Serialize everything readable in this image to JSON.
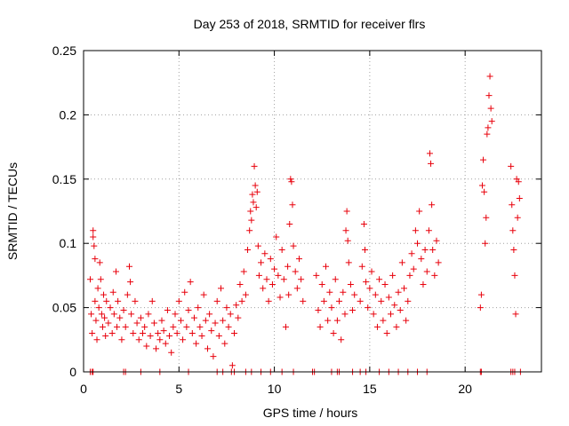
{
  "chart_data": {
    "type": "scatter",
    "title": "Day 253 of 2018, SRMTID for receiver flrs",
    "xlabel": "GPS time / hours",
    "ylabel": "SRMTID / TECUs",
    "xlim": [
      0,
      24
    ],
    "ylim": [
      0,
      0.25
    ],
    "xticks": [
      "0",
      "5",
      "10",
      "15",
      "20"
    ],
    "yticks": [
      "0",
      "0.05",
      "0.1",
      "0.15",
      "0.2",
      "0.25"
    ],
    "grid": true,
    "marker": "plus",
    "color": "#e8000b",
    "series": [
      {
        "points": [
          [
            0.35,
            0.072
          ],
          [
            0.4,
            0.045
          ],
          [
            0.45,
            0.03
          ],
          [
            0.5,
            0.11
          ],
          [
            0.5,
            0.105
          ],
          [
            0.55,
            0.098
          ],
          [
            0.6,
            0.088
          ],
          [
            0.6,
            0.055
          ],
          [
            0.65,
            0.04
          ],
          [
            0.7,
            0.025
          ],
          [
            0.75,
            0.065
          ],
          [
            0.8,
            0.05
          ],
          [
            0.85,
            0.085
          ],
          [
            0.9,
            0.072
          ],
          [
            0.95,
            0.045
          ],
          [
            1.0,
            0.035
          ],
          [
            1.05,
            0.06
          ],
          [
            1.1,
            0.042
          ],
          [
            1.15,
            0.028
          ],
          [
            1.2,
            0.055
          ],
          [
            1.3,
            0.038
          ],
          [
            1.4,
            0.05
          ],
          [
            1.5,
            0.03
          ],
          [
            1.55,
            0.062
          ],
          [
            1.6,
            0.045
          ],
          [
            1.7,
            0.078
          ],
          [
            1.75,
            0.035
          ],
          [
            1.8,
            0.055
          ],
          [
            1.9,
            0.042
          ],
          [
            2.0,
            0.025
          ],
          [
            2.1,
            0.048
          ],
          [
            2.2,
            0.035
          ],
          [
            2.3,
            0.06
          ],
          [
            2.4,
            0.082
          ],
          [
            2.45,
            0.07
          ],
          [
            2.5,
            0.045
          ],
          [
            2.6,
            0.03
          ],
          [
            2.7,
            0.055
          ],
          [
            2.8,
            0.038
          ],
          [
            2.9,
            0.025
          ],
          [
            3.0,
            0.042
          ],
          [
            3.1,
            0.03
          ],
          [
            3.2,
            0.035
          ],
          [
            3.3,
            0.02
          ],
          [
            3.4,
            0.045
          ],
          [
            3.5,
            0.028
          ],
          [
            3.6,
            0.055
          ],
          [
            3.7,
            0.038
          ],
          [
            3.8,
            0.018
          ],
          [
            3.9,
            0.03
          ],
          [
            4.0,
            0.025
          ],
          [
            4.1,
            0.04
          ],
          [
            4.2,
            0.032
          ],
          [
            4.3,
            0.022
          ],
          [
            4.4,
            0.048
          ],
          [
            4.5,
            0.028
          ],
          [
            4.6,
            0.015
          ],
          [
            4.7,
            0.035
          ],
          [
            4.8,
            0.045
          ],
          [
            4.9,
            0.03
          ],
          [
            5.0,
            0.055
          ],
          [
            5.1,
            0.04
          ],
          [
            5.2,
            0.025
          ],
          [
            5.3,
            0.062
          ],
          [
            5.4,
            0.035
          ],
          [
            5.5,
            0.048
          ],
          [
            5.6,
            0.07
          ],
          [
            5.7,
            0.03
          ],
          [
            5.8,
            0.042
          ],
          [
            5.9,
            0.022
          ],
          [
            6.0,
            0.05
          ],
          [
            6.1,
            0.035
          ],
          [
            6.2,
            0.028
          ],
          [
            6.3,
            0.06
          ],
          [
            6.4,
            0.04
          ],
          [
            6.5,
            0.018
          ],
          [
            6.6,
            0.045
          ],
          [
            6.7,
            0.032
          ],
          [
            6.8,
            0.012
          ],
          [
            6.9,
            0.038
          ],
          [
            7.0,
            0.055
          ],
          [
            7.1,
            0.028
          ],
          [
            7.2,
            0.065
          ],
          [
            7.3,
            0.04
          ],
          [
            7.4,
            0.022
          ],
          [
            7.5,
            0.05
          ],
          [
            7.6,
            0.035
          ],
          [
            7.7,
            0.045
          ],
          [
            7.8,
            0.005
          ],
          [
            7.9,
            0.03
          ],
          [
            8.0,
            0.052
          ],
          [
            8.1,
            0.042
          ],
          [
            8.2,
            0.068
          ],
          [
            8.3,
            0.055
          ],
          [
            8.4,
            0.078
          ],
          [
            8.5,
            0.06
          ],
          [
            8.6,
            0.095
          ],
          [
            8.7,
            0.11
          ],
          [
            8.75,
            0.125
          ],
          [
            8.8,
            0.118
          ],
          [
            8.85,
            0.138
          ],
          [
            8.9,
            0.132
          ],
          [
            8.95,
            0.16
          ],
          [
            9.0,
            0.145
          ],
          [
            9.05,
            0.128
          ],
          [
            9.1,
            0.14
          ],
          [
            9.15,
            0.098
          ],
          [
            9.2,
            0.075
          ],
          [
            9.3,
            0.085
          ],
          [
            9.4,
            0.065
          ],
          [
            9.5,
            0.092
          ],
          [
            9.6,
            0.072
          ],
          [
            9.7,
            0.055
          ],
          [
            9.8,
            0.088
          ],
          [
            9.9,
            0.068
          ],
          [
            10.0,
            0.08
          ],
          [
            10.1,
            0.105
          ],
          [
            10.2,
            0.075
          ],
          [
            10.3,
            0.058
          ],
          [
            10.4,
            0.095
          ],
          [
            10.5,
            0.072
          ],
          [
            10.6,
            0.035
          ],
          [
            10.7,
            0.082
          ],
          [
            10.75,
            0.06
          ],
          [
            10.8,
            0.115
          ],
          [
            10.85,
            0.15
          ],
          [
            10.9,
            0.148
          ],
          [
            10.95,
            0.13
          ],
          [
            11.0,
            0.098
          ],
          [
            11.1,
            0.078
          ],
          [
            11.2,
            0.065
          ],
          [
            11.3,
            0.088
          ],
          [
            11.4,
            0.072
          ],
          [
            11.5,
            0.055
          ],
          [
            12.2,
            0.075
          ],
          [
            12.3,
            0.048
          ],
          [
            12.4,
            0.035
          ],
          [
            12.5,
            0.068
          ],
          [
            12.6,
            0.055
          ],
          [
            12.7,
            0.082
          ],
          [
            12.8,
            0.04
          ],
          [
            12.9,
            0.062
          ],
          [
            13.0,
            0.05
          ],
          [
            13.1,
            0.03
          ],
          [
            13.2,
            0.072
          ],
          [
            13.3,
            0.04
          ],
          [
            13.4,
            0.055
          ],
          [
            13.5,
            0.025
          ],
          [
            13.6,
            0.062
          ],
          [
            13.7,
            0.045
          ],
          [
            13.75,
            0.11
          ],
          [
            13.8,
            0.125
          ],
          [
            13.85,
            0.102
          ],
          [
            13.9,
            0.085
          ],
          [
            14.0,
            0.068
          ],
          [
            14.1,
            0.048
          ],
          [
            14.2,
            0.06
          ],
          [
            14.5,
            0.055
          ],
          [
            14.6,
            0.082
          ],
          [
            14.7,
            0.115
          ],
          [
            14.75,
            0.095
          ],
          [
            14.8,
            0.07
          ],
          [
            14.9,
            0.05
          ],
          [
            15.0,
            0.065
          ],
          [
            15.1,
            0.078
          ],
          [
            15.2,
            0.045
          ],
          [
            15.3,
            0.06
          ],
          [
            15.4,
            0.035
          ],
          [
            15.5,
            0.072
          ],
          [
            15.6,
            0.055
          ],
          [
            15.7,
            0.04
          ],
          [
            15.8,
            0.068
          ],
          [
            15.9,
            0.03
          ],
          [
            16.0,
            0.058
          ],
          [
            16.1,
            0.045
          ],
          [
            16.2,
            0.075
          ],
          [
            16.3,
            0.052
          ],
          [
            16.4,
            0.035
          ],
          [
            16.5,
            0.062
          ],
          [
            16.6,
            0.048
          ],
          [
            16.7,
            0.085
          ],
          [
            16.8,
            0.065
          ],
          [
            16.9,
            0.04
          ],
          [
            17.0,
            0.055
          ],
          [
            17.1,
            0.075
          ],
          [
            17.2,
            0.092
          ],
          [
            17.3,
            0.08
          ],
          [
            17.4,
            0.11
          ],
          [
            17.5,
            0.1
          ],
          [
            17.6,
            0.125
          ],
          [
            17.7,
            0.088
          ],
          [
            17.8,
            0.068
          ],
          [
            17.9,
            0.095
          ],
          [
            18.0,
            0.078
          ],
          [
            18.1,
            0.11
          ],
          [
            18.15,
            0.17
          ],
          [
            18.2,
            0.162
          ],
          [
            18.25,
            0.13
          ],
          [
            18.3,
            0.095
          ],
          [
            18.4,
            0.075
          ],
          [
            18.5,
            0.102
          ],
          [
            18.6,
            0.085
          ],
          [
            20.8,
            0.05
          ],
          [
            20.85,
            0.06
          ],
          [
            20.9,
            0.145
          ],
          [
            20.95,
            0.165
          ],
          [
            21.0,
            0.14
          ],
          [
            21.05,
            0.1
          ],
          [
            21.1,
            0.12
          ],
          [
            21.15,
            0.185
          ],
          [
            21.2,
            0.19
          ],
          [
            21.25,
            0.215
          ],
          [
            21.3,
            0.23
          ],
          [
            21.35,
            0.205
          ],
          [
            21.4,
            0.195
          ],
          [
            22.4,
            0.16
          ],
          [
            22.45,
            0.13
          ],
          [
            22.5,
            0.11
          ],
          [
            22.55,
            0.095
          ],
          [
            22.6,
            0.075
          ],
          [
            22.65,
            0.045
          ],
          [
            22.7,
            0.15
          ],
          [
            22.75,
            0.12
          ],
          [
            22.8,
            0.148
          ],
          [
            22.85,
            0.135
          ]
        ]
      }
    ],
    "zero_marks_x": [
      0.35,
      0.45,
      0.5,
      2.1,
      2.2,
      3.0,
      4.0,
      5.5,
      7.0,
      7.3,
      7.75,
      7.9,
      8.5,
      8.8,
      9.3,
      9.8,
      10.4,
      11.0,
      12.0,
      12.1,
      13.0,
      13.3,
      13.4,
      14.1,
      14.5,
      14.8,
      15.5,
      16.0,
      16.5,
      17.0,
      17.5,
      18.0,
      20.8,
      20.85,
      22.4,
      22.5,
      22.6,
      22.9
    ]
  }
}
